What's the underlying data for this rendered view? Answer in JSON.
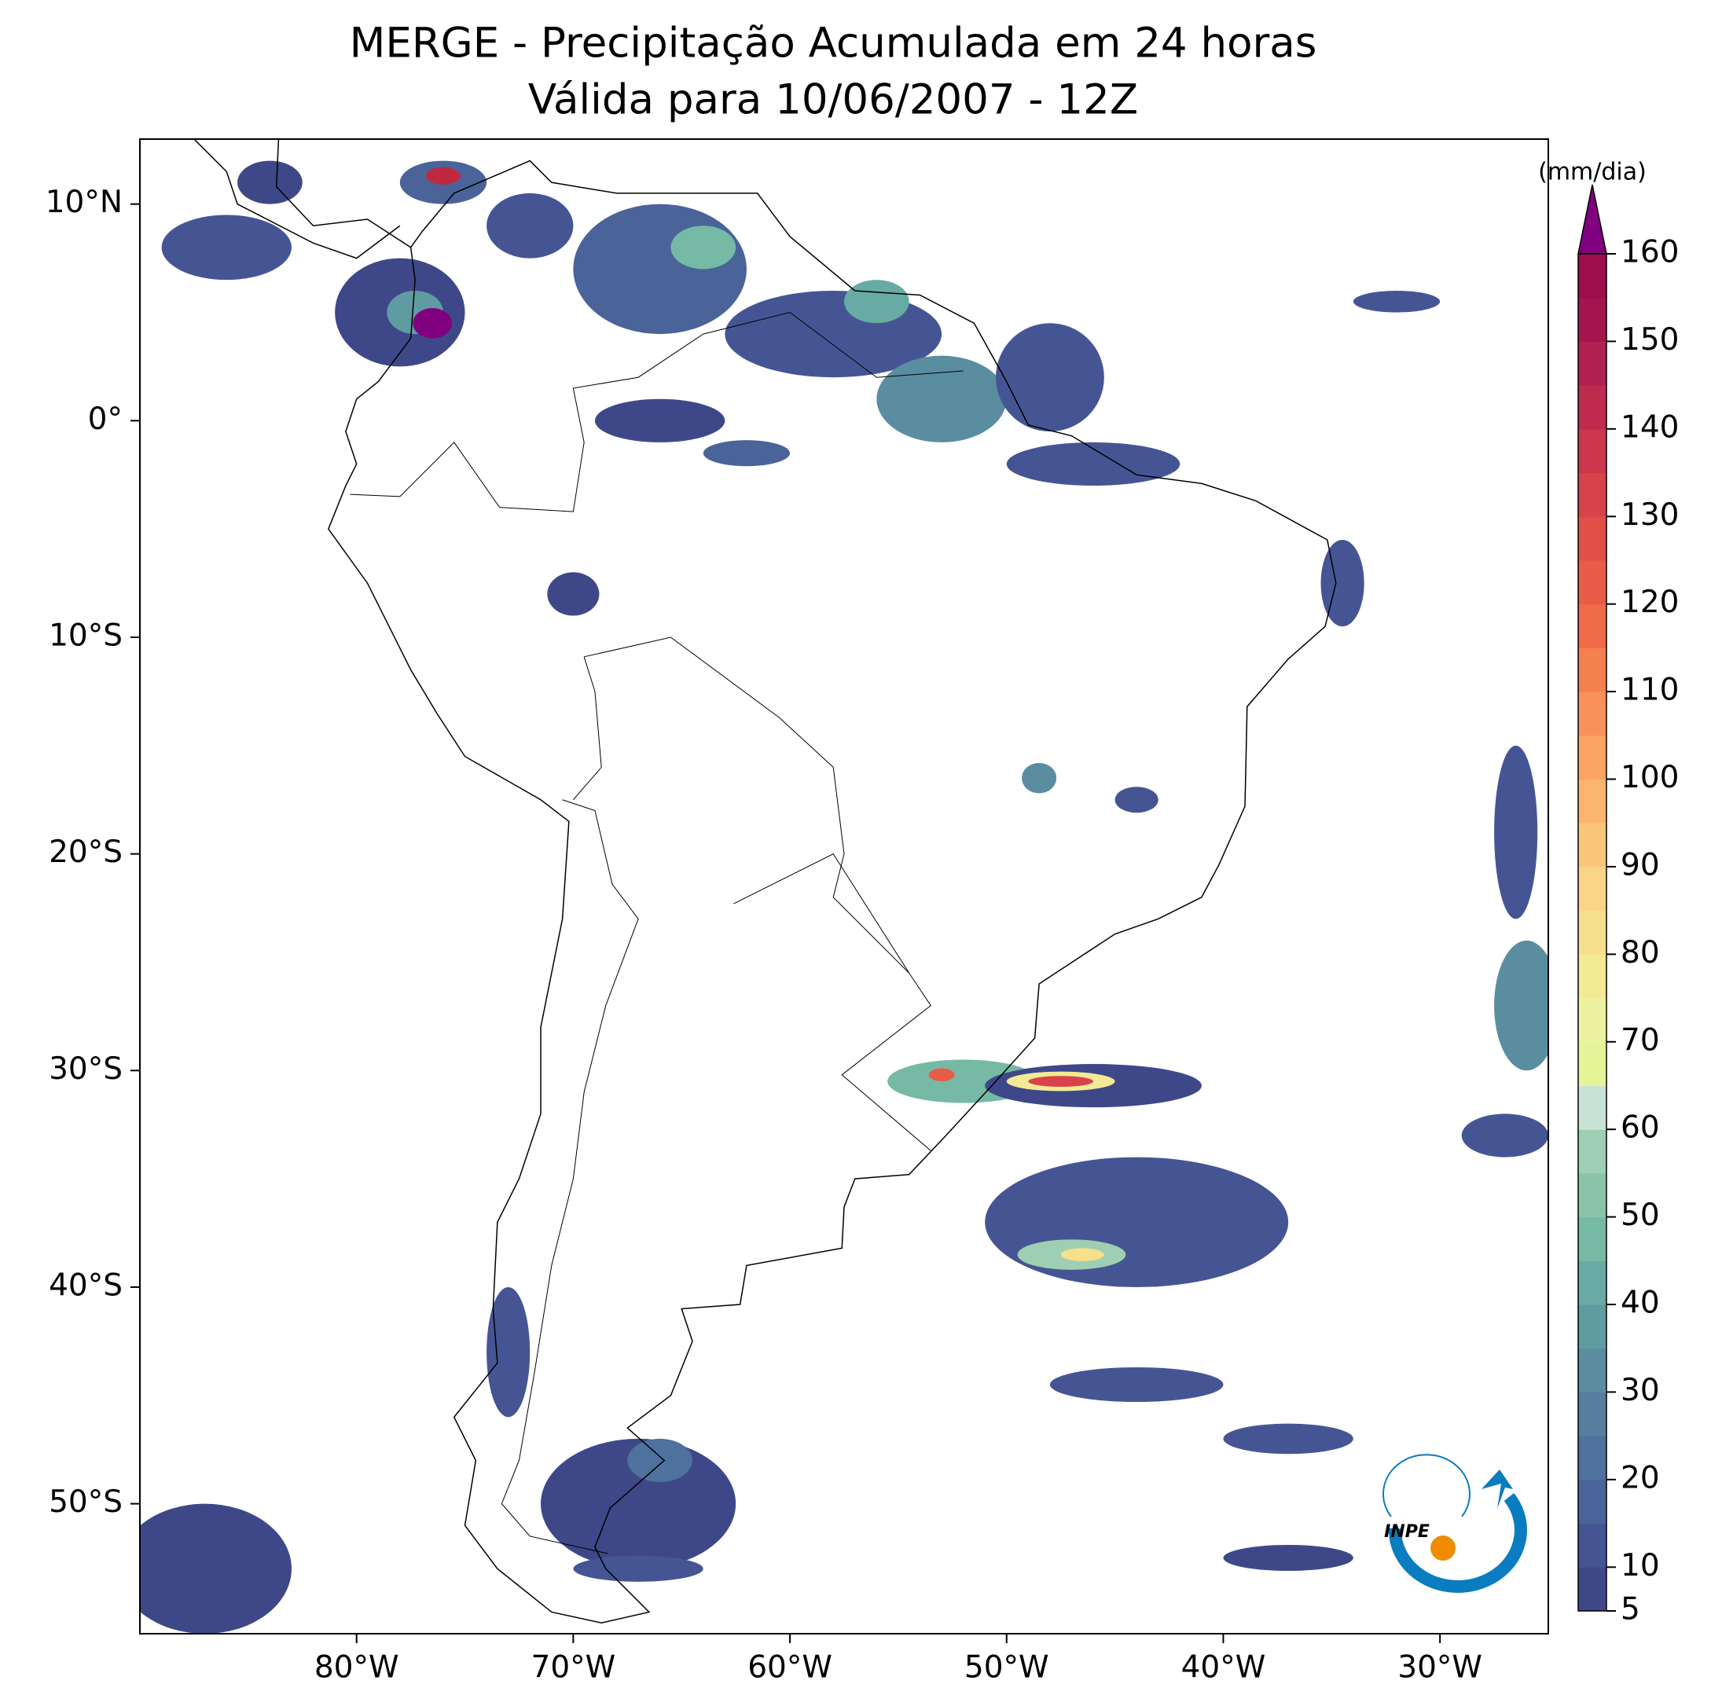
{
  "chart_data": {
    "type": "map",
    "title": "MERGE - Precipitação Acumulada em 24 horas",
    "subtitle": "Válida para 10/06/2007 - 12Z",
    "xlim": [
      -90,
      -25
    ],
    "ylim": [
      -56,
      13
    ],
    "xticks": [
      {
        "value": -80,
        "label": "80°W"
      },
      {
        "value": -70,
        "label": "70°W"
      },
      {
        "value": -60,
        "label": "60°W"
      },
      {
        "value": -50,
        "label": "50°W"
      },
      {
        "value": -40,
        "label": "40°W"
      },
      {
        "value": -30,
        "label": "30°W"
      }
    ],
    "yticks": [
      {
        "value": 10,
        "label": "10°N"
      },
      {
        "value": 0,
        "label": "0°"
      },
      {
        "value": -10,
        "label": "10°S"
      },
      {
        "value": -20,
        "label": "20°S"
      },
      {
        "value": -30,
        "label": "30°S"
      },
      {
        "value": -40,
        "label": "40°S"
      },
      {
        "value": -50,
        "label": "50°S"
      }
    ],
    "colorbar": {
      "label": "(mm/dia)",
      "lim": [
        5,
        160
      ],
      "ticks": [
        5,
        10,
        20,
        30,
        40,
        50,
        60,
        70,
        80,
        90,
        100,
        110,
        120,
        130,
        140,
        150,
        160
      ],
      "extend_color": "#800080",
      "colors": [
        "#3e4889",
        "#455594",
        "#4a6399",
        "#4f719d",
        "#567e9f",
        "#5b8da0",
        "#5f9ca2",
        "#67aba4",
        "#76b9a5",
        "#8ac4a8",
        "#9fcfb3",
        "#c9e4d6",
        "#e5f498",
        "#ecf2a0",
        "#f2ea94",
        "#f6e08b",
        "#f9d585",
        "#fbc57a",
        "#fbb56e",
        "#fba464",
        "#f9925a",
        "#f47f50",
        "#ef6b48",
        "#e95c47",
        "#e04f48",
        "#d7434b",
        "#cc374d",
        "#bf2b4f",
        "#b02050",
        "#a4154f",
        "#9c0e4c"
      ]
    },
    "logo": "INPE"
  }
}
